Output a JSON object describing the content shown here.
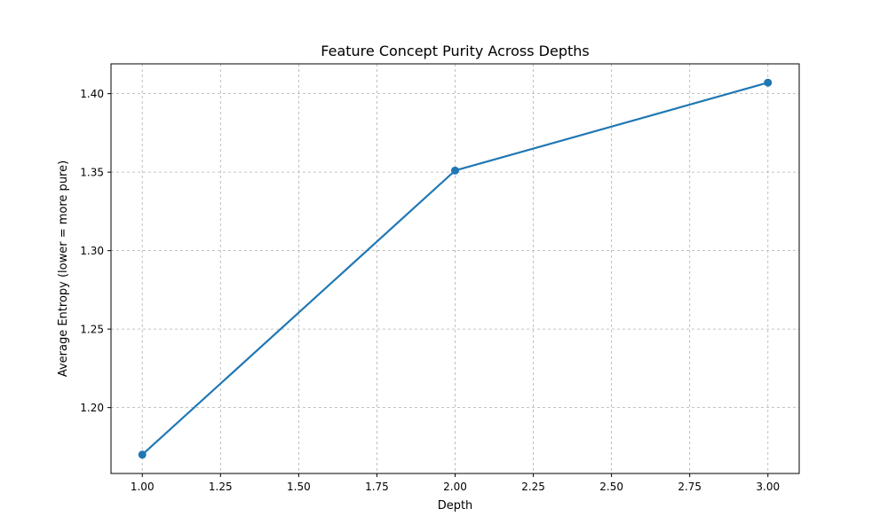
{
  "chart_data": {
    "type": "line",
    "title": "Feature Concept Purity Across Depths",
    "xlabel": "Depth",
    "ylabel": "Average Entropy (lower = more pure)",
    "x": [
      1.0,
      2.0,
      3.0
    ],
    "series": [
      {
        "values": [
          1.17,
          1.351,
          1.407
        ],
        "color": "#1f77b4",
        "marker": "circle"
      }
    ],
    "xlim": [
      0.9,
      3.1
    ],
    "ylim": [
      1.158,
      1.419
    ],
    "xticks": [
      1.0,
      1.25,
      1.5,
      1.75,
      2.0,
      2.25,
      2.5,
      2.75,
      3.0
    ],
    "xtick_labels": [
      "1.00",
      "1.25",
      "1.50",
      "1.75",
      "2.00",
      "2.25",
      "2.50",
      "2.75",
      "3.00"
    ],
    "yticks": [
      1.2,
      1.25,
      1.3,
      1.35,
      1.4
    ],
    "ytick_labels": [
      "1.20",
      "1.25",
      "1.30",
      "1.35",
      "1.40"
    ],
    "grid": true,
    "grid_style": "dashed",
    "grid_color": "#b0b0b0"
  }
}
